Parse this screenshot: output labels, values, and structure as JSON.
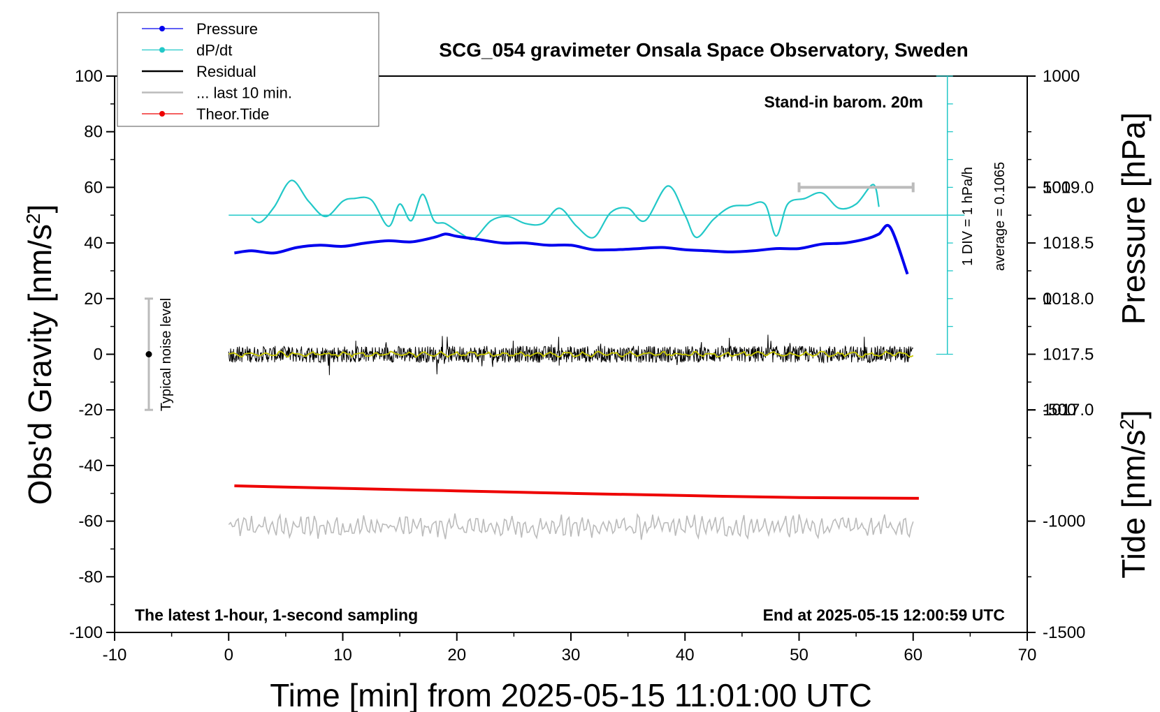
{
  "chart_data": {
    "type": "line",
    "title": "SCG_054 gravimeter Onsala Space Observatory, Sweden",
    "xlabel": "Time [min] from 2025-05-15 11:01:00 UTC",
    "ylabel_left_main": "Obs'd Gravity [nm/s",
    "ylabel_left_sup": "2",
    "ylabel_left_end": "]",
    "ylabel_right_pressure": "Pressure [hPa]",
    "ylabel_right_tide_main": "Tide [nm/s",
    "ylabel_right_tide_sup": "2",
    "ylabel_right_tide_end": "]",
    "xlim": [
      -10,
      70
    ],
    "ylim": [
      -100,
      100
    ],
    "x_ticks": [
      -10,
      0,
      10,
      20,
      30,
      40,
      50,
      60,
      70
    ],
    "x_tick_labels": [
      "-10",
      "0",
      "10",
      "20",
      "30",
      "40",
      "50",
      "60",
      "70"
    ],
    "y_ticks": [
      -100,
      -80,
      -60,
      -40,
      -20,
      0,
      20,
      40,
      60,
      80,
      100
    ],
    "y_tick_labels": [
      "-100",
      "-80",
      "-60",
      "-40",
      "-20",
      "0",
      "20",
      "40",
      "60",
      "80",
      "100"
    ],
    "pressure_axis": {
      "ticks": [
        1017.0,
        1017.5,
        1018.0,
        1018.5,
        1019.0
      ],
      "tick_labels": [
        "1017.0",
        "1017.5",
        "1018.0",
        "1018.5",
        "1019.0"
      ],
      "ylim": [
        1015.0,
        1020.0
      ]
    },
    "tide_axis": {
      "ticks": [
        -1500,
        -1000,
        -500,
        0,
        500,
        1000
      ],
      "tick_labels": [
        "-1500",
        "-1000",
        "-500",
        "0",
        "500",
        "1000"
      ],
      "ylim": [
        -1500,
        1000
      ]
    },
    "legend": {
      "placement": "top-left",
      "entries": [
        {
          "label": "Pressure",
          "color": "#0000ee",
          "marker": true
        },
        {
          "label": "dP/dt",
          "color": "#22c8c8",
          "marker": true
        },
        {
          "label": "Residual",
          "color": "#000000",
          "marker": false
        },
        {
          "label": "... last 10 min.",
          "color": "#bbbbbb",
          "marker": false
        },
        {
          "label": "Theor.Tide",
          "color": "#ee0000",
          "marker": true
        }
      ]
    },
    "annotations": {
      "barometer": "Stand-in barom. 20m",
      "div_scale": "1 DIV = 1 hPa/h",
      "average": "average = 0.1065",
      "noise": "Typical noise level",
      "sampling": "The latest 1-hour, 1-second sampling",
      "end_time": "End at 2025-05-15 12:00:59 UTC"
    },
    "noise_bar": {
      "x": -7,
      "y_low": -20,
      "y_high": 20,
      "center": 0
    },
    "ten_min_bar": {
      "x_start": 50,
      "x_end": 60,
      "tide_value": 500
    },
    "series": [
      {
        "name": "Pressure",
        "color": "#0000ee",
        "axis": "pressure",
        "x": [
          0.5,
          2,
          4,
          6,
          8,
          10,
          12,
          14,
          16,
          18,
          19,
          20,
          22,
          24,
          26,
          28,
          30,
          32,
          34,
          36,
          38,
          40,
          42,
          44,
          46,
          48,
          50,
          52,
          54,
          56,
          57,
          58,
          59.5
        ],
        "values": [
          1018.41,
          1018.43,
          1018.41,
          1018.46,
          1018.48,
          1018.47,
          1018.5,
          1018.52,
          1018.51,
          1018.55,
          1018.58,
          1018.56,
          1018.53,
          1018.5,
          1018.5,
          1018.48,
          1018.48,
          1018.44,
          1018.44,
          1018.45,
          1018.46,
          1018.44,
          1018.43,
          1018.42,
          1018.43,
          1018.45,
          1018.45,
          1018.49,
          1018.5,
          1018.54,
          1018.58,
          1018.64,
          1018.22
        ]
      },
      {
        "name": "dP/dt",
        "color": "#22c8c8",
        "axis": "gravity",
        "baseline": 50,
        "x": [
          2,
          2.8,
          4,
          5.5,
          7,
          8.5,
          10,
          11,
          12.5,
          14,
          15,
          16,
          17,
          18,
          19,
          20.5,
          21.5,
          23,
          24.5,
          26,
          27.5,
          29,
          30.5,
          32,
          33.5,
          35,
          36.5,
          38.5,
          40,
          41,
          42.5,
          44,
          45.5,
          47,
          48,
          49,
          50.5,
          52,
          53.5,
          55,
          56.5,
          57
        ],
        "values": [
          49,
          47.5,
          53,
          62.5,
          55,
          49.5,
          55,
          56,
          55.5,
          46,
          54,
          48,
          57.5,
          48,
          47,
          43,
          41.5,
          48,
          49.5,
          47,
          47,
          52.5,
          46,
          42,
          51,
          52.5,
          48,
          60.5,
          50,
          42,
          48.5,
          53,
          53.5,
          54,
          42.5,
          54,
          56,
          58,
          52.5,
          54,
          61,
          53
        ]
      },
      {
        "name": "Residual",
        "color": "#000000",
        "axis": "gravity",
        "x_range": [
          0,
          60
        ],
        "amplitude": 3
      },
      {
        "name": "... last 10 min.",
        "color": "#bbbbbb",
        "axis": "gravity",
        "x_range": [
          0,
          60
        ],
        "center": -62,
        "amplitude": 3.5
      },
      {
        "name": "Theor.Tide",
        "color": "#ee0000",
        "axis": "gravity",
        "x": [
          0.5,
          10,
          20,
          30,
          40,
          50,
          60.5
        ],
        "values": [
          -47.3,
          -48.2,
          -49.1,
          -50.0,
          -50.8,
          -51.5,
          -51.8
        ]
      },
      {
        "name": "Residual smoothed",
        "color": "#c8c800",
        "axis": "gravity",
        "x_range": [
          0,
          60
        ],
        "amplitude": 1
      }
    ]
  }
}
